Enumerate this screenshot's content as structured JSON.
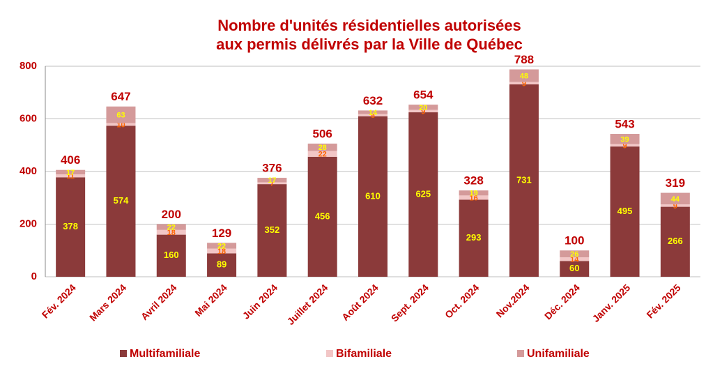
{
  "chart_data": {
    "type": "stacked_bar",
    "title": [
      "Nombre d'unités résidentielles autorisées",
      "aux permis délivrés par la Ville de Québec"
    ],
    "categories": [
      "Fév. 2024",
      "Mars 2024",
      "Avril 2024",
      "Mai 2024",
      "Juin 2024",
      "Juillet 2024",
      "Août 2024",
      "Sept. 2024",
      "Oct. 2024",
      "Nov.2024",
      "Déc. 2024",
      "Janv. 2025",
      "Fév. 2025"
    ],
    "series": [
      {
        "name": "Multifamiliale",
        "color": "#8b3a3a",
        "label_color": "#ffff00",
        "values": [
          378,
          574,
          160,
          89,
          352,
          456,
          610,
          625,
          293,
          731,
          60,
          495,
          266
        ]
      },
      {
        "name": "Bifamiliale",
        "color": "#f2c6c6",
        "label_color": "#ff6600",
        "values": [
          11,
          10,
          18,
          18,
          7,
          22,
          8,
          9,
          16,
          9,
          14,
          9,
          9
        ]
      },
      {
        "name": "Unifamiliale",
        "color": "#d49a9a",
        "label_color": "#ffff00",
        "values": [
          17,
          63,
          22,
          22,
          17,
          28,
          14,
          20,
          19,
          48,
          26,
          39,
          44
        ]
      }
    ],
    "totals": [
      406,
      647,
      200,
      129,
      376,
      506,
      632,
      654,
      328,
      788,
      100,
      543,
      319
    ],
    "ylim": [
      0,
      800
    ],
    "yticks": [
      0,
      200,
      400,
      600,
      800
    ],
    "grid": true,
    "legend": "bottom"
  }
}
